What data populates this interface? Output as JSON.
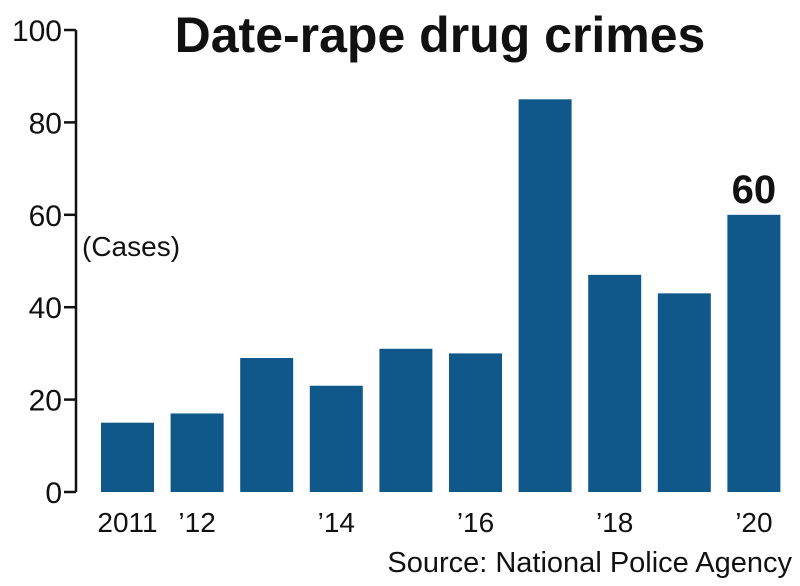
{
  "chart_data": {
    "type": "bar",
    "title": "Date-rape drug crimes",
    "unit_label": "(Cases)",
    "source": "Source: National Police Agency",
    "categories": [
      "2011",
      "2012",
      "2013",
      "2014",
      "2015",
      "2016",
      "2017",
      "2018",
      "2019",
      "2020"
    ],
    "x_tick_labels": [
      {
        "category": "2011",
        "label": "2011"
      },
      {
        "category": "2012",
        "label": "’12"
      },
      {
        "category": "2014",
        "label": "’14"
      },
      {
        "category": "2016",
        "label": "’16"
      },
      {
        "category": "2018",
        "label": "’18"
      },
      {
        "category": "2020",
        "label": "’20"
      }
    ],
    "values": [
      15,
      17,
      29,
      23,
      31,
      30,
      85,
      47,
      43,
      60
    ],
    "data_labels": [
      {
        "category": "2020",
        "label": "60"
      }
    ],
    "ylim": [
      0,
      100
    ],
    "y_ticks": [
      0,
      20,
      40,
      60,
      80,
      100
    ],
    "grid": false,
    "bar_color": "#11588a"
  }
}
